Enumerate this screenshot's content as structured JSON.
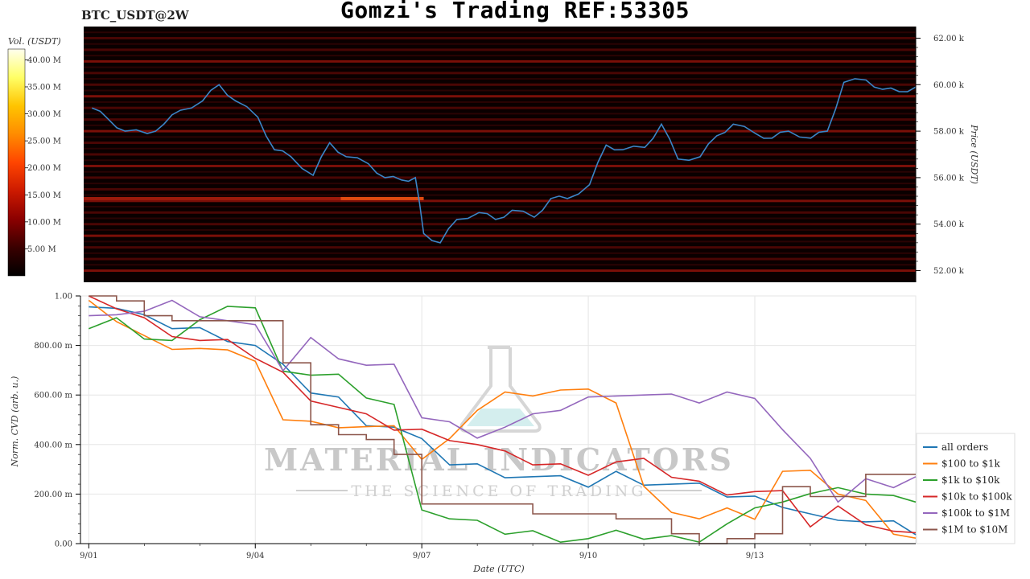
{
  "header": {
    "pair": "BTC_USDT@2W",
    "title": "Gomzi's Trading REF:53305"
  },
  "colorbar": {
    "label": "Vol. (USDT)",
    "ticks": [
      "5.00 M",
      "10.00 M",
      "15.00 M",
      "20.00 M",
      "25.00 M",
      "30.00 M",
      "35.00 M",
      "40.00 M"
    ],
    "colors": [
      "#000000",
      "#3a0000",
      "#8b0000",
      "#cc1a00",
      "#ff4500",
      "#ff8c00",
      "#ffc400",
      "#ffff66",
      "#ffffee"
    ]
  },
  "watermark": {
    "line1": "MATERIAL INDICATORS",
    "line2": "THE SCIENCE OF TRADING"
  },
  "chart_data": [
    {
      "type": "heatmap",
      "ylabel": "Price (USDT)",
      "ylim": [
        51500,
        62500
      ],
      "yticks": [
        "52.00 k",
        "54.00 k",
        "56.00 k",
        "58.00 k",
        "60.00 k",
        "62.00 k"
      ],
      "ytick_values": [
        52000,
        54000,
        56000,
        58000,
        60000,
        62000
      ],
      "price_series": {
        "x": [
          0,
          0.3,
          0.6,
          1,
          1.3,
          1.6,
          2,
          2.3,
          2.6,
          3,
          3.3,
          3.6,
          4,
          4.3,
          4.6,
          5,
          5.3,
          5.6,
          5.85,
          6,
          6.3,
          6.6,
          7,
          7.3,
          7.6,
          8,
          8.3,
          8.6,
          9,
          9.3,
          9.6,
          10,
          10.3,
          10.6,
          11,
          11.3,
          11.6,
          12,
          12.3,
          12.6,
          13,
          13.3,
          13.6,
          14,
          14.3,
          14.6,
          14.9
        ],
        "y": [
          59000,
          58500,
          58000,
          57900,
          58300,
          58900,
          59300,
          60000,
          59300,
          58600,
          57200,
          56900,
          56100,
          57500,
          56900,
          56600,
          56000,
          55900,
          56000,
          53600,
          53200,
          54200,
          54500,
          54200,
          54600,
          54300,
          55100,
          55100,
          55700,
          57400,
          57200,
          57300,
          58300,
          56800,
          56900,
          57800,
          58300,
          57900,
          57700,
          58000,
          57700,
          58000,
          60100,
          60200,
          59800,
          59700,
          59900
        ]
      },
      "liquidity_bands": [
        52000,
        52500,
        53000,
        53500,
        54000,
        54500,
        55000,
        55500,
        56000,
        56500,
        57000,
        57500,
        58000,
        58500,
        59000,
        59500,
        60000,
        60500,
        61000,
        61500,
        62000
      ],
      "hotspot": {
        "price": 55100,
        "from_day": 4.5,
        "to_day": 6.0
      }
    },
    {
      "type": "line",
      "xlabel": "Date (UTC)",
      "ylabel": "Norm. CVD (arb. u.)",
      "xlim": [
        -0.15,
        14.9
      ],
      "ylim": [
        0,
        1
      ],
      "xticks": [
        "9/01",
        "9/04",
        "9/07",
        "9/10",
        "9/13"
      ],
      "xtick_values": [
        0,
        3,
        6,
        9,
        12
      ],
      "yticks": [
        "0.00",
        "200.00 m",
        "400.00 m",
        "600.00 m",
        "800.00 m",
        "1.00"
      ],
      "ytick_values": [
        0,
        0.2,
        0.4,
        0.6,
        0.8,
        1.0
      ],
      "x": [
        0,
        0.5,
        1,
        1.5,
        2,
        2.5,
        3,
        3.5,
        4,
        4.5,
        5,
        5.5,
        6,
        6.5,
        7,
        7.5,
        8,
        8.5,
        9,
        9.5,
        10,
        10.5,
        11,
        11.5,
        12,
        12.5,
        13,
        13.5,
        14,
        14.5,
        14.9
      ],
      "series": [
        {
          "name": "all orders",
          "color": "#1f77b4",
          "values": [
            0.98,
            0.95,
            0.9,
            0.88,
            0.86,
            0.84,
            0.8,
            0.7,
            0.62,
            0.58,
            0.5,
            0.47,
            0.4,
            0.33,
            0.31,
            0.29,
            0.27,
            0.25,
            0.24,
            0.28,
            0.26,
            0.24,
            0.22,
            0.2,
            0.18,
            0.17,
            0.12,
            0.07,
            0.1,
            0.08,
            0.06
          ]
        },
        {
          "name": "$100 to $1k",
          "color": "#ff7f0e",
          "values": [
            0.97,
            0.92,
            0.84,
            0.76,
            0.8,
            0.77,
            0.76,
            0.5,
            0.47,
            0.48,
            0.46,
            0.5,
            0.34,
            0.4,
            0.55,
            0.6,
            0.62,
            0.62,
            0.6,
            0.58,
            0.22,
            0.15,
            0.1,
            0.12,
            0.11,
            0.28,
            0.32,
            0.2,
            0.15,
            0.05,
            0.01
          ]
        },
        {
          "name": "$1k to $10k",
          "color": "#2ca02c",
          "values": [
            0.88,
            0.9,
            0.85,
            0.82,
            0.88,
            0.97,
            0.94,
            0.72,
            0.68,
            0.66,
            0.6,
            0.55,
            0.16,
            0.1,
            0.07,
            0.05,
            0.04,
            0.03,
            0.02,
            0.03,
            0.03,
            0.02,
            0.03,
            0.08,
            0.12,
            0.18,
            0.19,
            0.25,
            0.2,
            0.17,
            0.18
          ]
        },
        {
          "name": "$10k to $100k",
          "color": "#d62728",
          "values": [
            0.99,
            0.96,
            0.9,
            0.86,
            0.82,
            0.8,
            0.76,
            0.68,
            0.6,
            0.55,
            0.5,
            0.47,
            0.45,
            0.44,
            0.4,
            0.35,
            0.33,
            0.31,
            0.3,
            0.33,
            0.32,
            0.28,
            0.24,
            0.22,
            0.21,
            0.19,
            0.08,
            0.14,
            0.1,
            0.05,
            0.02
          ]
        },
        {
          "name": "$100k to $1M",
          "color": "#9467bd",
          "values": [
            0.92,
            0.9,
            0.95,
            0.97,
            0.94,
            0.9,
            0.86,
            0.71,
            0.82,
            0.77,
            0.72,
            0.7,
            0.52,
            0.48,
            0.45,
            0.47,
            0.5,
            0.55,
            0.58,
            0.62,
            0.6,
            0.58,
            0.58,
            0.6,
            0.61,
            0.46,
            0.32,
            0.18,
            0.25,
            0.25,
            0.27
          ]
        },
        {
          "name": "$1M to $10M",
          "color": "#8c564b",
          "values": [
            1.0,
            0.98,
            0.92,
            0.9,
            0.9,
            0.9,
            0.9,
            0.73,
            0.48,
            0.44,
            0.42,
            0.36,
            0.16,
            0.16,
            0.16,
            0.16,
            0.12,
            0.12,
            0.12,
            0.1,
            0.1,
            0.04,
            0.0,
            0.02,
            0.04,
            0.23,
            0.19,
            0.19,
            0.28,
            0.28,
            0.28
          ]
        }
      ]
    }
  ]
}
